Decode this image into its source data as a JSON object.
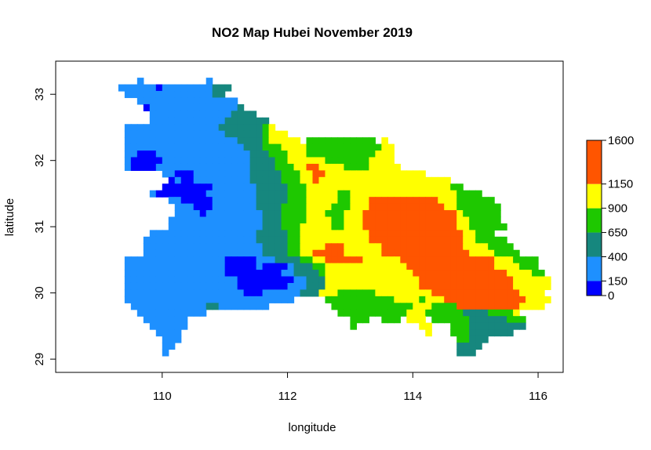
{
  "chart_data": {
    "type": "heatmap",
    "title": "NO2 Map Hubei November 2019",
    "xlabel": "longitude",
    "ylabel": "latitude",
    "xlim": [
      108.3,
      116.4
    ],
    "ylim": [
      28.8,
      33.5
    ],
    "x_ticks": [
      "110",
      "112",
      "114",
      "116"
    ],
    "y_ticks": [
      "29",
      "30",
      "31",
      "32",
      "33"
    ],
    "legend": {
      "position": "right",
      "breaks": [
        0,
        150,
        400,
        650,
        900,
        1150,
        1600
      ],
      "tick_labels": [
        "0",
        "150",
        "400",
        "650",
        "900",
        "1150",
        "1600"
      ],
      "colors": [
        "#0000ff",
        "#1e90ff",
        "#16877e",
        "#1ec800",
        "#ffff00",
        "#ff5500"
      ]
    },
    "colors": [
      "#0000ff",
      "#1e90ff",
      "#16877e",
      "#1ec800",
      "#ffff00",
      "#ff5500"
    ],
    "grid": {
      "x0": 108.6,
      "y_top": 33.25,
      "cell_deg": 0.1,
      "legend_chars": "A=0-150, B=150-400, C=400-650, D=650-900, E=900-1150, F=1150-1600, .=no data",
      "rows": [
        "..........B..........B................................................",
        ".......BBBBBBABBBBBBBBCCC.............................................",
        "........BBBBBBBBBBBBBBCC..............................................",
        "..........BBBBBBBBBBBBBBBB............................................",
        "...........ABBBBBBBBBBBBBBC...........................................",
        "............BBBBBBBBBBBBBCCCC.........................................",
        "............BBBBBBBBBBBBCCCCCCC.......................................",
        "........BBBBBBBBBBBBBBBCCCCCCCDE......................................",
        "........BBBBBBBBBBBBBBBBCCCCCCDEEE....................................",
        "........BBBBBBBBBBBBBBBBBBCCCCDEEEEE.DDDDDDDDDDD.E....................",
        "........BBBBBBBBBBBBBBBBBBBCCCDDDEEEEDDDDDDDDDDDDEE...................",
        "........BBAAABBBBBBBBBBBBBBBCCCDDDEEEDDDDDDDDDDDEEE...................",
        "........BAAAAABBBBBBBBBBBBBBCCCCDDEEEEEEDDDDDDDEEEE...................",
        "........BAAAABBBBBBBBBBBBBBBCCCCDDDEEFFEEEEDDDDEEEEE..................",
        "..............BBAAABBBBBBBBBCCCCCDDDEEFFEEEEEEEEEEEEEEEE..............",
        "...............ABAABBBBBBBBBCCCCCDDDEEFEEEEEEEEEEEEEEEEEEEEE..........",
        "..............AAAAAAAABBBBBBBCCCCCDDDEEEEEEEEEEEEEEEEEEEEEEEDD........",
        "............BAAAAAAAABBBBBBBBCCCCCDDDEEEEEDDEEEEEEEEEEEEEEEEEDDDD.....",
        "...............BBAAAAABBBBBBBCCCCCDDDEEEEEDDEEEFFFFFFFFFFFEEEDDDDDD...",
        "................BBBAAABBBBBBBCCCCDDDDEEEEDDDEEEFFFFFFFFFFFFEEDDDDDDD..",
        "................BBBBABBBBBBBBBCCCDDDDEEEDDDEEEFFFFFFFFFFFFFFFEDDDDDD...",
        "...............BBBBBBBBBBBBBBBCCCDDDDEEEEDDEEEFFFFFFFFFFFFFFFEEDDDDD...",
        "...............BBBBBBBBBBBBBBBCCCDDDEEEEEDDEEEFFFFFFFFFFFFFFFEEDDDDDD..",
        "............BBBBBBBBBBBBBBBBBCCCCCDDEEEEEEEEEEEFFFFFFFFFFFFFFFEEDDD....",
        "...........BBBBBBBBBBBBBBBBBBCCCCCDDEEEEEEEEEEEFFFFFFFFFFFFFFFEEDDDDD..",
        "...........BBBBBBBBBBBBBBBBBBBCCCCDDEEEEFFFEEEEEEFFFFFFFFFFFFFEEEEDDDD.",
        "...........BBBBBBBBBBBBBBBBBBBCCCCDDEEFFFFFEEEEEEFFFFFFFFFFFFFFEEEEDDDD",
        "........BBBBBBBBBBBBBBBBAAAAABBBCCCCDDEEFFFFFFEEEEEEFFFFFFFFFFFFFFFEEEDDDD",
        "........BBBBBBBBBBBBBBBBAAAAABAAAABCCCDDEEEEEEEEEEEEEFFFFFFFFFFFFFFEEEEDDD",
        "........BBBBBBBBBBBBBBBBAAAAAAAAABBCCCCDEEEEEEEEEEEEEEFFFFFFFFFFFFFFFEEEEDD",
        "........BBBBBBBBBBBBBBBBBBAAAAAAAAABBCCCEEEEEEEEEEEEEEEFFFFFFFFFFFFFFFEEEEEE",
        "........BBBBBBBBBBBBBBBBBBAAAAAAAABBBCCCEEEEEEEEEEEEEEEFFFFFFFFFFFFFFFEEEEEE",
        "........BBBBBBBBBBBBBBBBBBBAAABBBBBBCCCEEEDDDDDDEEEEEEEEEFFFFFFFFFFFFFFEEEE.",
        "........BBBBBBBBBBBBBBBBBBBBBBBBBBB.....DDDDDDDDDDDEEEEDEEEFFFFFFFFFFFFFEEEE",
        ".........BBBBBBBBBBBBCCBBBBBBBB..........DDDDDDDDDDDDDEEEDDDDFFFFFFFFFFEEEE.",
        "..........BBBBBBBBBBB.....................DDDDDDDDDDDEEEDDDDDDCCCCDDDDE.....",
        "...........BBBBBBB..........................DDD..DDD.EEE.DDDDDDCCCCCCDDD.....",
        "............BBBBBB..........................D..........EE...DDDCCCCCCCCC......",
        ".............BBBB.......................................E...DDDCCCCCCC........",
        "..............BBB............................................DDCCC............",
        "..............BB.............................................CCCC.............",
        "..............B..............................................CCC.............."
      ]
    }
  }
}
